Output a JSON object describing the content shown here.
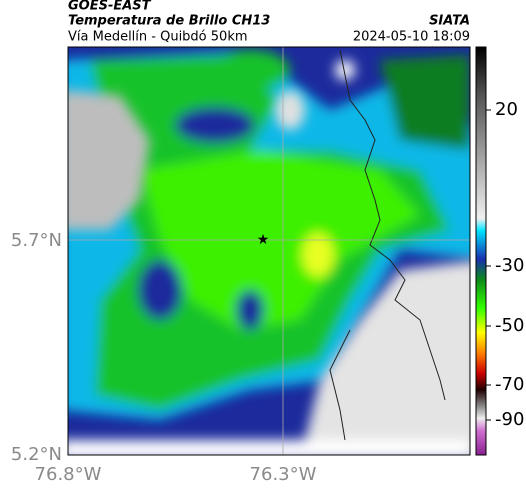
{
  "header": {
    "source": "GOES-EAST",
    "product": "Temperatura de Brillo CH13",
    "agency": "SIATA",
    "route": "Vía Medellín - Quibdó 50km",
    "timestamp": "2024-05-10 18:09"
  },
  "map": {
    "lat_labels": [
      "5.7°N",
      "5.2°N"
    ],
    "lon_labels": [
      "76.8°W",
      "76.3°W"
    ]
  },
  "colorbar": {
    "ticks": [
      20,
      -30,
      -50,
      -70,
      -90
    ]
  }
}
